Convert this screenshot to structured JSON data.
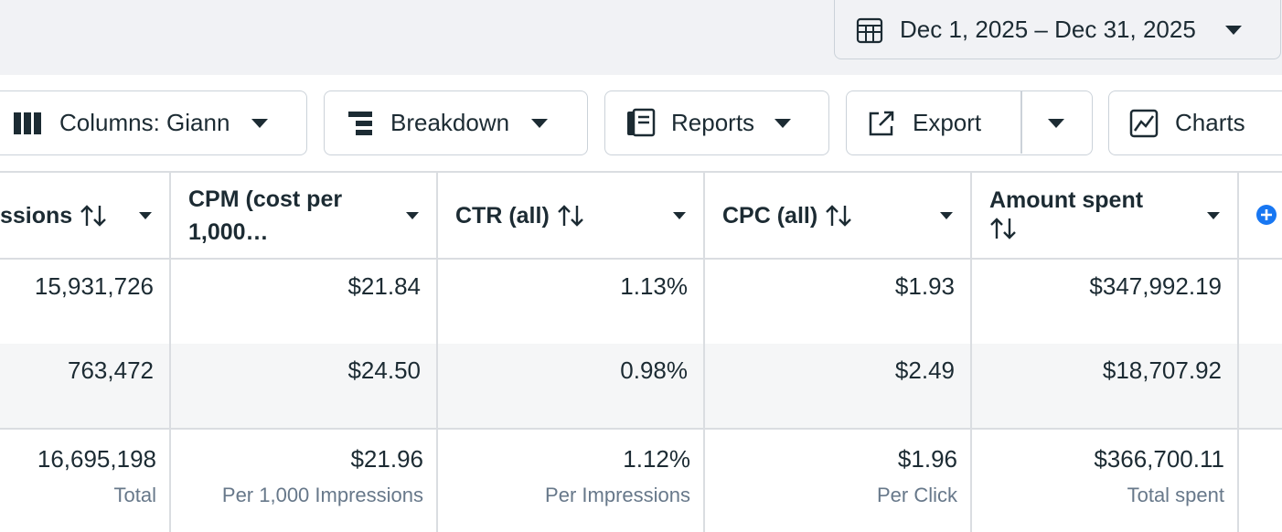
{
  "date_range": "Dec 1, 2025 – Dec 31, 2025",
  "toolbar": {
    "columns": "Columns: Giann",
    "breakdown": "Breakdown",
    "reports": "Reports",
    "export": "Export",
    "charts": "Charts"
  },
  "table": {
    "headers": [
      "ssions",
      "CPM (cost per 1,000…",
      "CTR (all)",
      "CPC (all)",
      "Amount spent"
    ],
    "rows": [
      [
        "15,931,726",
        "$21.84",
        "1.13%",
        "$1.93",
        "$347,992.19"
      ],
      [
        "763,472",
        "$24.50",
        "0.98%",
        "$2.49",
        "$18,707.92"
      ]
    ],
    "totals": {
      "values": [
        "16,695,198",
        "$21.96",
        "1.12%",
        "$1.96",
        "$366,700.11"
      ],
      "notes": [
        "Total",
        "Per 1,000 Impressions",
        "Per Impressions",
        "Per Click",
        "Total spent"
      ]
    }
  }
}
